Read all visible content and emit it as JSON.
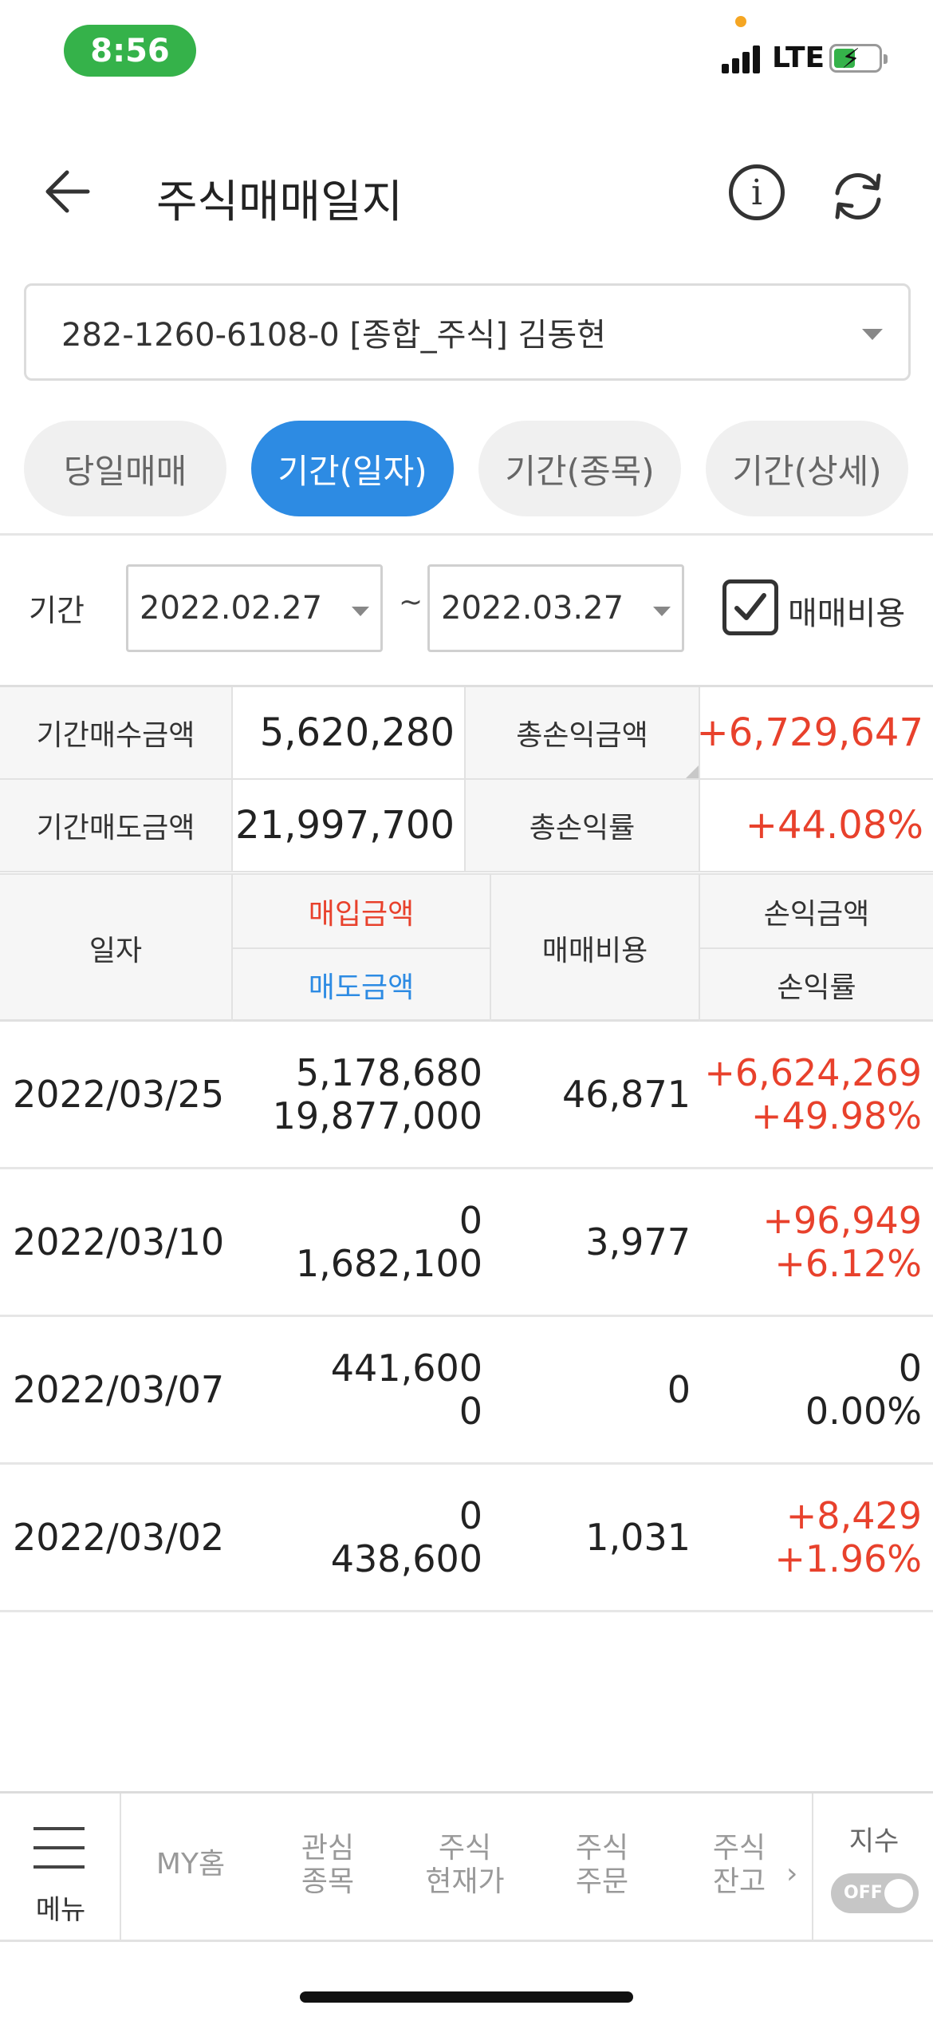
{
  "status_bar": {
    "time": "8:56",
    "network": "LTE"
  },
  "header": {
    "title": "주식매매일지"
  },
  "account": {
    "selected": "282-1260-6108-0 [종합_주식] 김동현"
  },
  "tabs": [
    {
      "label": "당일매매",
      "active": false
    },
    {
      "label": "기간(일자)",
      "active": true
    },
    {
      "label": "기간(종목)",
      "active": false
    },
    {
      "label": "기간(상세)",
      "active": false
    }
  ],
  "period": {
    "label": "기간",
    "start": "2022.02.27",
    "separator": "~",
    "end": "2022.03.27",
    "checkbox_label": "매매비용",
    "checkbox_checked": true
  },
  "summary": {
    "buy_label": "기간매수금액",
    "buy_value": "5,620,280",
    "sell_label": "기간매도금액",
    "sell_value": "21,997,700",
    "pnl_label": "총손익금액",
    "pnl_value": "+6,729,647",
    "rate_label": "총손익률",
    "rate_value": "+44.08%"
  },
  "table": {
    "headers": {
      "date": "일자",
      "buy_amount": "매입금액",
      "sell_amount": "매도금액",
      "cost": "매매비용",
      "pnl_amount": "손익금액",
      "pnl_rate": "손익률"
    },
    "rows": [
      {
        "date": "2022/03/25",
        "buy": "5,178,680",
        "sell": "19,877,000",
        "cost": "46,871",
        "pnl": "+6,624,269",
        "rate": "+49.98%",
        "positive": true
      },
      {
        "date": "2022/03/10",
        "buy": "0",
        "sell": "1,682,100",
        "cost": "3,977",
        "pnl": "+96,949",
        "rate": "+6.12%",
        "positive": true
      },
      {
        "date": "2022/03/07",
        "buy": "441,600",
        "sell": "0",
        "cost": "0",
        "pnl": "0",
        "rate": "0.00%",
        "positive": false
      },
      {
        "date": "2022/03/02",
        "buy": "0",
        "sell": "438,600",
        "cost": "1,031",
        "pnl": "+8,429",
        "rate": "+1.96%",
        "positive": true
      }
    ]
  },
  "bottom_nav": {
    "menu": "메뉴",
    "items": [
      {
        "line1": "MY홈",
        "line2": ""
      },
      {
        "line1": "관심",
        "line2": "종목"
      },
      {
        "line1": "주식",
        "line2": "현재가"
      },
      {
        "line1": "주식",
        "line2": "주문"
      },
      {
        "line1": "주식",
        "line2": "잔고"
      }
    ],
    "index_label": "지수",
    "toggle_text": "OFF"
  },
  "colors": {
    "accent": "#2d8be3",
    "positive": "#e8412c",
    "status_green": "#35b24a"
  }
}
